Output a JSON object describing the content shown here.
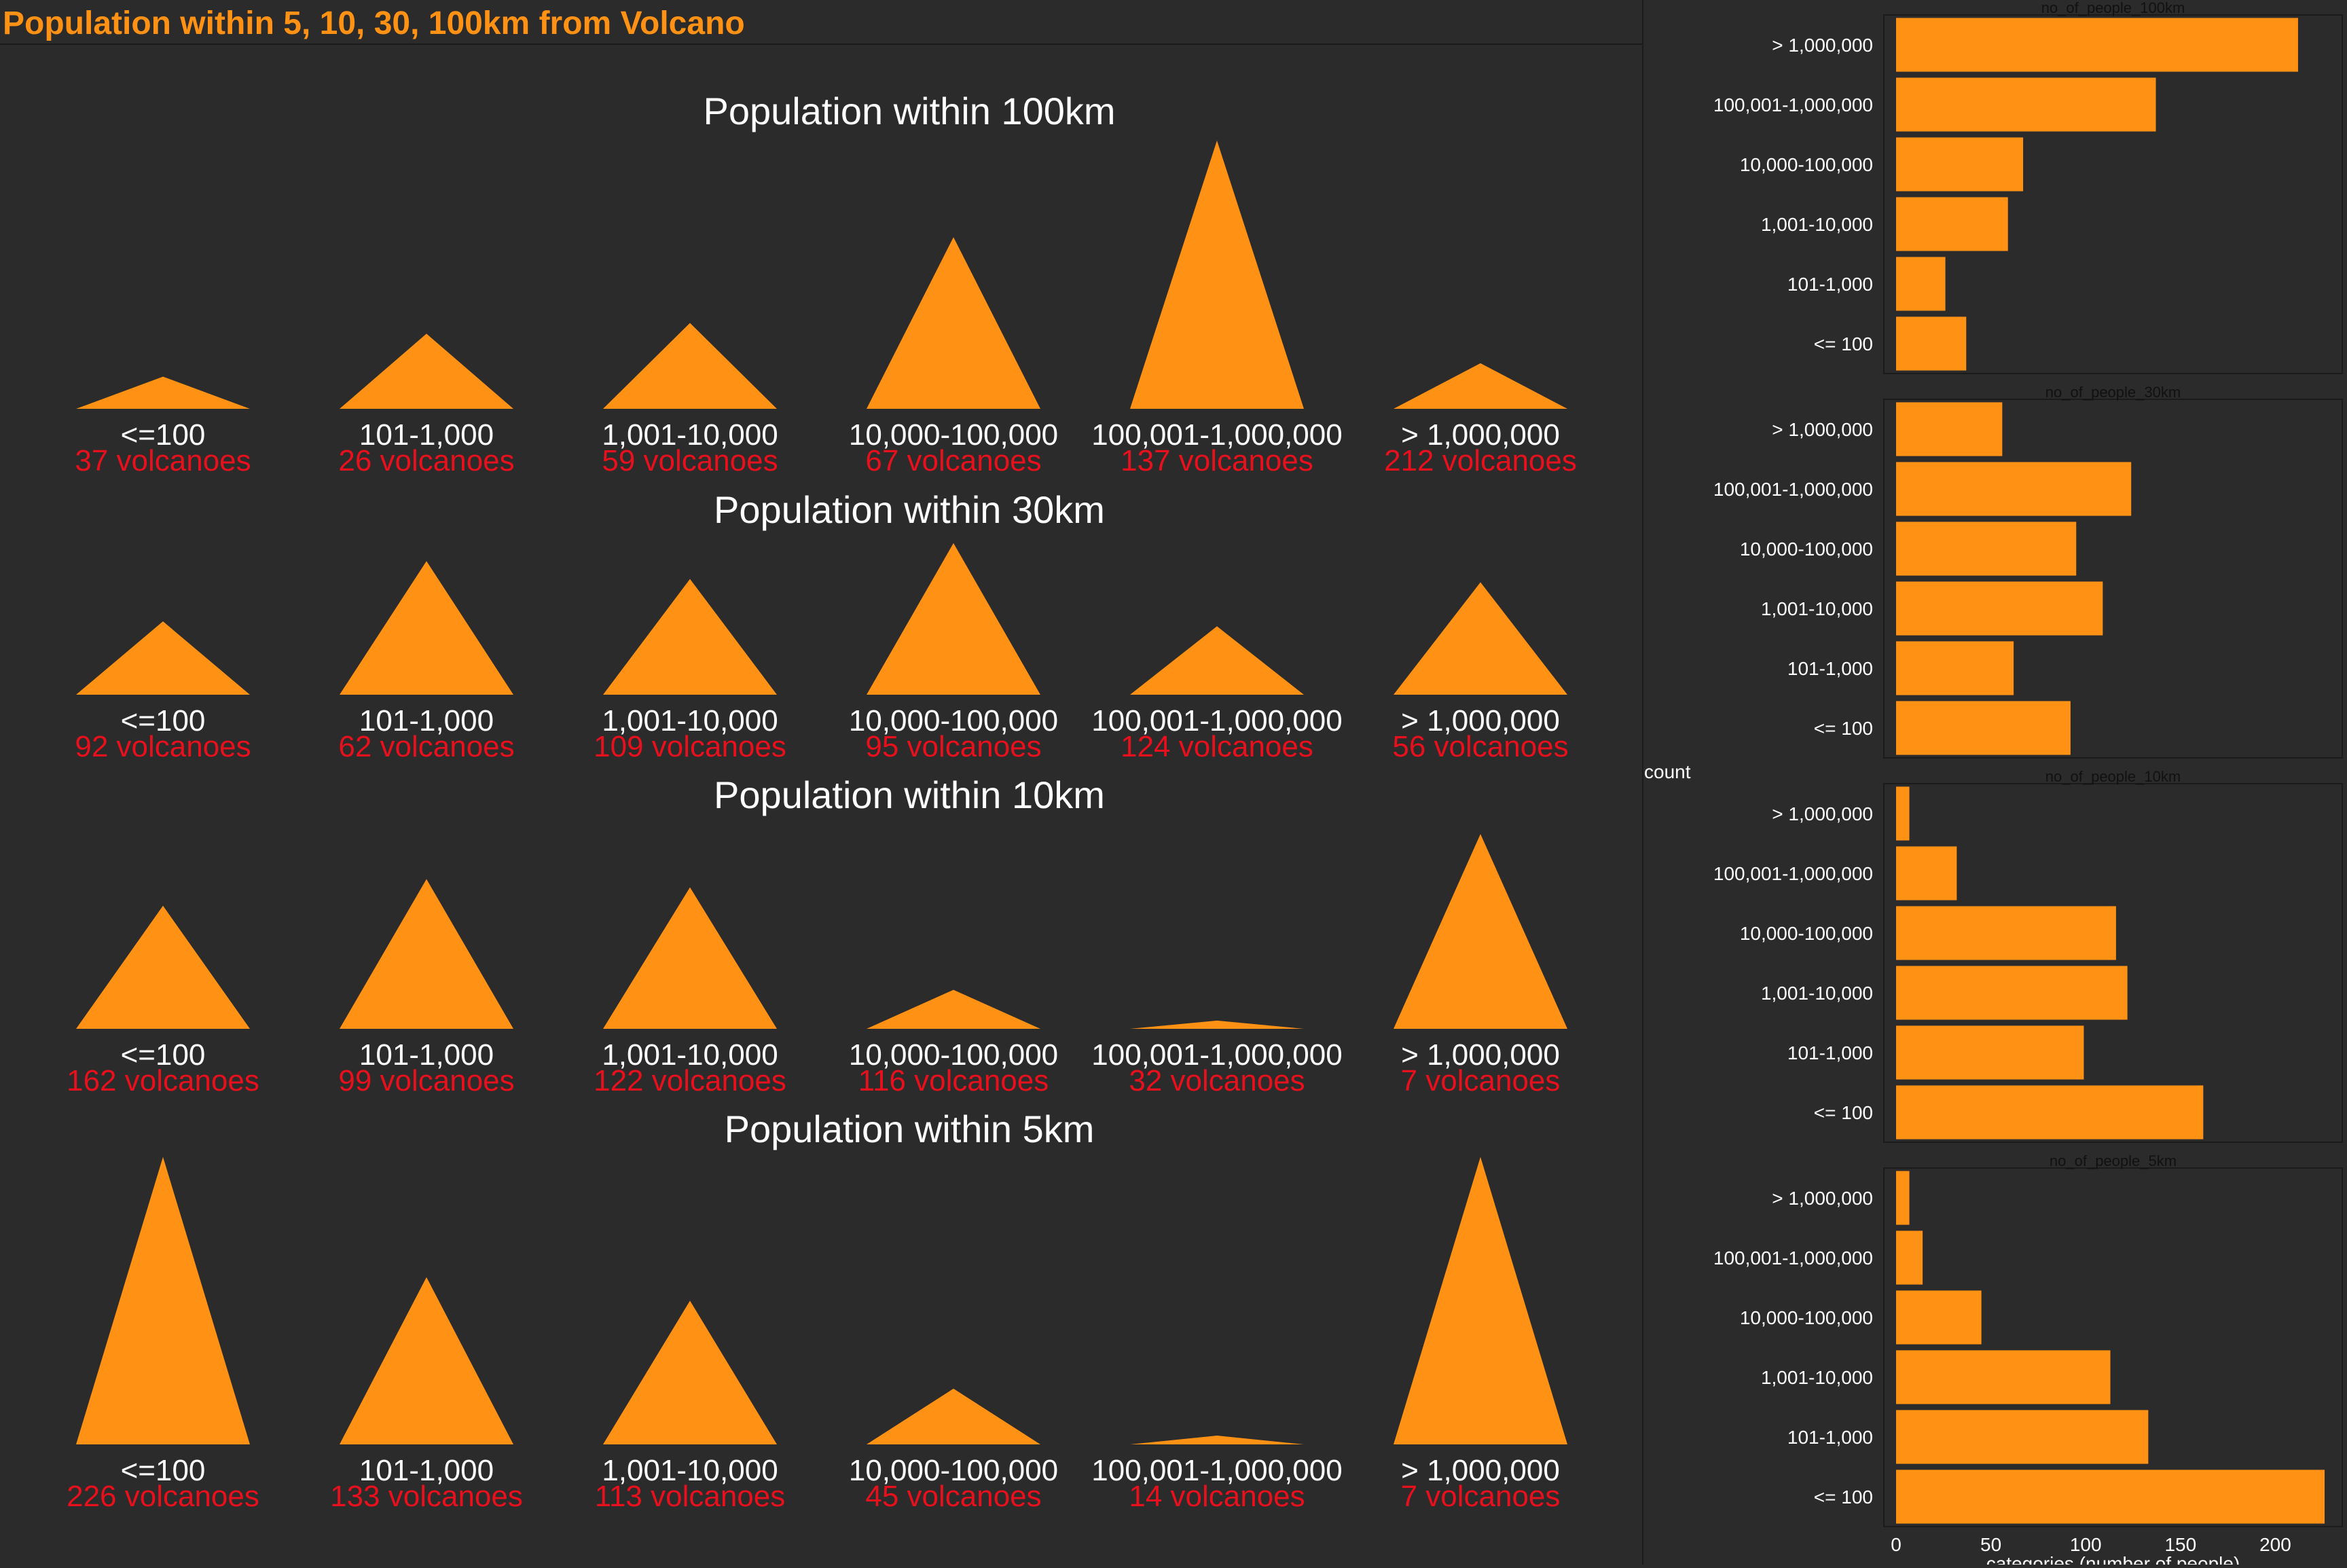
{
  "dashboard": {
    "title": "Population within 5, 10, 30, 100km from Volcano"
  },
  "colors": {
    "background": "#2b2b2b",
    "accent": "#ff9214",
    "count_text": "#e8101c",
    "label_text": "#ffffff",
    "axis_text": "#ffffff"
  },
  "chart_data": [
    {
      "type": "area",
      "title": "Population within 100km",
      "categories": [
        "<=100",
        "101-1,000",
        "1,001-10,000",
        "10,000-100,000",
        "100,001-1,000,000",
        "> 1,000,000"
      ],
      "values": [
        37,
        26,
        59,
        67,
        137,
        212
      ],
      "count_labels": [
        "37 volcanoes",
        "26 volcanoes",
        "59 volcanoes",
        "67 volcanoes",
        "137 volcanoes",
        "212 volcanoes"
      ],
      "peak_heights": [
        0.12,
        0.28,
        0.32,
        0.64,
        1.0,
        0.17
      ]
    },
    {
      "type": "area",
      "title": "Population within 30km",
      "categories": [
        "<=100",
        "101-1,000",
        "1,001-10,000",
        "10,000-100,000",
        "100,001-1,000,000",
        "> 1,000,000"
      ],
      "values": [
        92,
        62,
        109,
        95,
        124,
        56
      ],
      "count_labels": [
        "92 volcanoes",
        "62 volcanoes",
        "109 volcanoes",
        "95 volcanoes",
        "124 volcanoes",
        "56 volcanoes"
      ],
      "peak_heights": [
        0.45,
        0.82,
        0.71,
        0.93,
        0.42,
        0.69
      ]
    },
    {
      "type": "area",
      "title": "Population within 10km",
      "categories": [
        "<=100",
        "101-1,000",
        "1,001-10,000",
        "10,000-100,000",
        "100,001-1,000,000",
        "> 1,000,000"
      ],
      "values": [
        162,
        99,
        122,
        116,
        32,
        7
      ],
      "count_labels": [
        "162 volcanoes",
        "99 volcanoes",
        "122 volcanoes",
        "116 volcanoes",
        "32 volcanoes",
        "7 volcanoes"
      ],
      "peak_heights": [
        0.6,
        0.73,
        0.69,
        0.19,
        0.04,
        0.95
      ]
    },
    {
      "type": "area",
      "title": "Population within 5km",
      "categories": [
        "<=100",
        "101-1,000",
        "1,001-10,000",
        "10,000-100,000",
        "100,001-1,000,000",
        "> 1,000,000"
      ],
      "values": [
        226,
        133,
        113,
        45,
        14,
        7
      ],
      "count_labels": [
        "226 volcanoes",
        "133 volcanoes",
        "113 volcanoes",
        "45 volcanoes",
        "14 volcanoes",
        "7 volcanoes"
      ],
      "peak_heights": [
        0.98,
        0.57,
        0.49,
        0.19,
        0.03,
        0.98
      ]
    },
    {
      "type": "bar",
      "orientation": "horizontal",
      "facet_titles": [
        "no_of_people_100km",
        "no_of_people_30km",
        "no_of_people_10km",
        "no_of_people_5km"
      ],
      "categories": [
        "> 1,000,000",
        "100,001-1,000,000",
        "10,000-100,000",
        "1,001-10,000",
        "101-1,000",
        "<= 100"
      ],
      "series": [
        {
          "facet": "no_of_people_100km",
          "values": [
            212,
            137,
            67,
            59,
            26,
            37
          ]
        },
        {
          "facet": "no_of_people_30km",
          "values": [
            56,
            124,
            95,
            109,
            62,
            92
          ]
        },
        {
          "facet": "no_of_people_10km",
          "values": [
            7,
            32,
            116,
            122,
            99,
            162
          ]
        },
        {
          "facet": "no_of_people_5km",
          "values": [
            7,
            14,
            45,
            113,
            133,
            226
          ]
        }
      ],
      "xlabel": "categories (number of people)",
      "ylabel": "count",
      "xlim": [
        0,
        231
      ],
      "xticks": [
        0,
        50,
        100,
        150,
        200
      ]
    }
  ]
}
